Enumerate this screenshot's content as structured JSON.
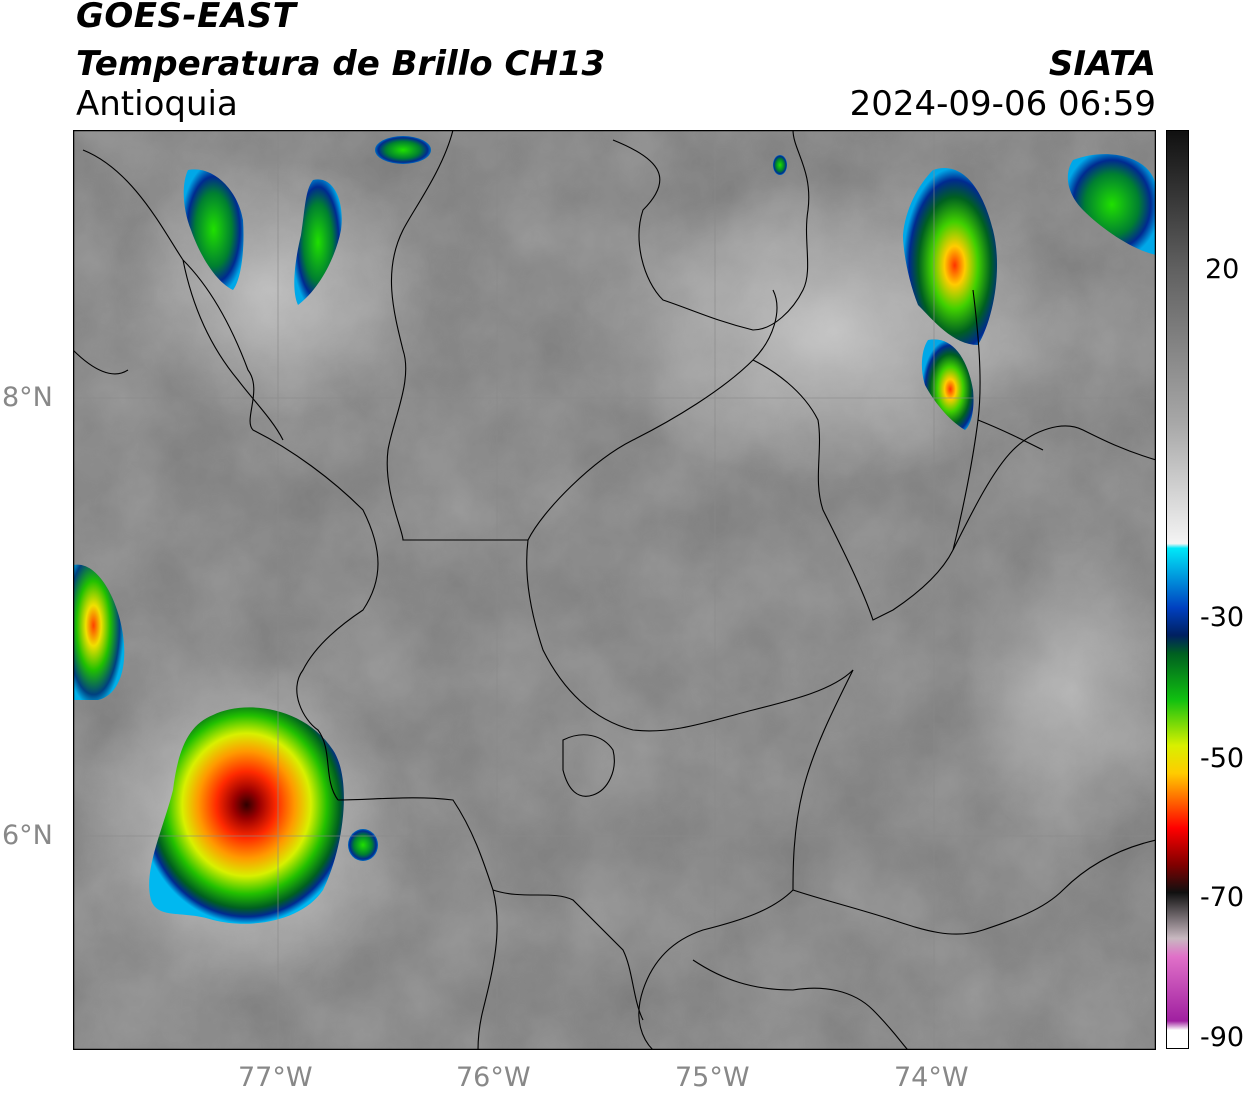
{
  "header": {
    "satellite": "GOES-EAST",
    "product": "Temperatura de Brillo CH13",
    "region": "Antioquia",
    "organization": "SIATA",
    "datetime": "2024-09-06 06:59"
  },
  "axes": {
    "lat_ticks": [
      "8°N",
      "6°N"
    ],
    "lon_ticks": [
      "77°W",
      "76°W",
      "75°W",
      "74°W"
    ]
  },
  "colorbar": {
    "ticks": [
      "20",
      "-30",
      "-50",
      "-70",
      "-90"
    ]
  },
  "colors": {
    "background_gray": "#7a7a7a",
    "cloud_white": "#e8e8e8",
    "border_line": "#000000"
  },
  "storm_cells": [
    {
      "lon": -77.0,
      "lat": 6.2,
      "min_temp_c": -70
    },
    {
      "lon": -73.85,
      "lat": 8.6,
      "min_temp_c": -55
    },
    {
      "lon": -76.7,
      "lat": 8.8,
      "min_temp_c": -40
    },
    {
      "lon": -77.9,
      "lat": 6.9,
      "min_temp_c": -55
    }
  ]
}
